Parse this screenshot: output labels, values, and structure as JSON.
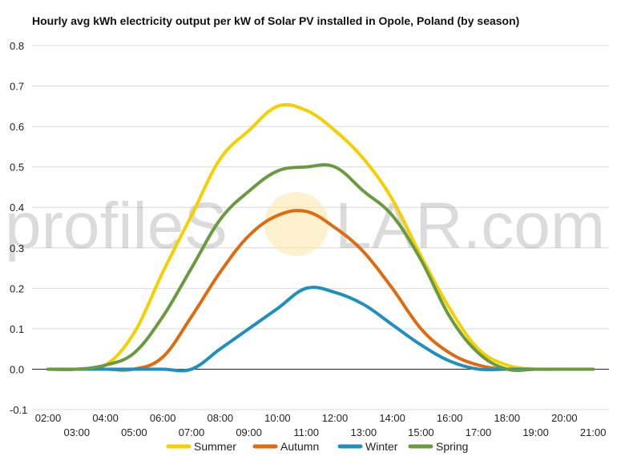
{
  "chart_data": {
    "type": "line",
    "title": "Hourly avg kWh electricity output per kW of Solar PV installed in Opole, Poland (by season)",
    "xlabel": "",
    "ylabel": "",
    "x": [
      "02:00",
      "03:00",
      "04:00",
      "05:00",
      "06:00",
      "07:00",
      "08:00",
      "09:00",
      "10:00",
      "11:00",
      "12:00",
      "13:00",
      "14:00",
      "15:00",
      "16:00",
      "17:00",
      "18:00",
      "19:00",
      "20:00",
      "21:00"
    ],
    "ylim": [
      -0.1,
      0.8
    ],
    "yticks": [
      "-0.1",
      "0.0",
      "0.1",
      "0.2",
      "0.3",
      "0.4",
      "0.5",
      "0.6",
      "0.7",
      "0.8"
    ],
    "grid": true,
    "legend_position": "bottom",
    "series": [
      {
        "name": "Summer",
        "color": "#f5d000",
        "values": [
          0.0,
          0.0,
          0.01,
          0.09,
          0.24,
          0.38,
          0.52,
          0.59,
          0.65,
          0.64,
          0.59,
          0.52,
          0.42,
          0.28,
          0.15,
          0.05,
          0.01,
          0.0,
          0.0,
          0.0
        ]
      },
      {
        "name": "Autumn",
        "color": "#e06a10",
        "values": [
          0.0,
          0.0,
          0.0,
          0.0,
          0.03,
          0.13,
          0.24,
          0.33,
          0.38,
          0.39,
          0.35,
          0.29,
          0.2,
          0.1,
          0.04,
          0.01,
          0.0,
          0.0,
          0.0,
          0.0
        ]
      },
      {
        "name": "Winter",
        "color": "#1f8fc0",
        "values": [
          0.0,
          0.0,
          0.0,
          0.0,
          0.0,
          0.0,
          0.05,
          0.1,
          0.15,
          0.2,
          0.19,
          0.16,
          0.11,
          0.06,
          0.02,
          0.0,
          0.0,
          0.0,
          0.0,
          0.0
        ]
      },
      {
        "name": "Spring",
        "color": "#6a9a40",
        "values": [
          0.0,
          0.0,
          0.01,
          0.04,
          0.13,
          0.25,
          0.37,
          0.44,
          0.49,
          0.5,
          0.5,
          0.44,
          0.38,
          0.27,
          0.13,
          0.04,
          0.0,
          0.0,
          0.0,
          0.0
        ]
      }
    ]
  },
  "watermark": {
    "text_left": "profileS",
    "text_right": "LAR.com"
  }
}
